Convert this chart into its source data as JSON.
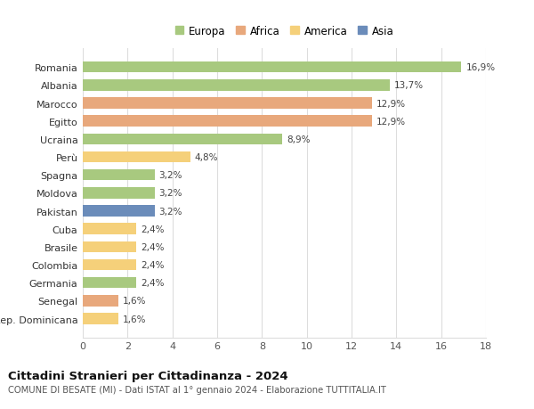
{
  "countries": [
    "Romania",
    "Albania",
    "Marocco",
    "Egitto",
    "Ucraina",
    "Perù",
    "Spagna",
    "Moldova",
    "Pakistan",
    "Cuba",
    "Brasile",
    "Colombia",
    "Germania",
    "Senegal",
    "Rep. Dominicana"
  ],
  "values": [
    16.9,
    13.7,
    12.9,
    12.9,
    8.9,
    4.8,
    3.2,
    3.2,
    3.2,
    2.4,
    2.4,
    2.4,
    2.4,
    1.6,
    1.6
  ],
  "labels": [
    "16,9%",
    "13,7%",
    "12,9%",
    "12,9%",
    "8,9%",
    "4,8%",
    "3,2%",
    "3,2%",
    "3,2%",
    "2,4%",
    "2,4%",
    "2,4%",
    "2,4%",
    "1,6%",
    "1,6%"
  ],
  "continents": [
    "Europa",
    "Europa",
    "Africa",
    "Africa",
    "Europa",
    "America",
    "Europa",
    "Europa",
    "Asia",
    "America",
    "America",
    "America",
    "Europa",
    "Africa",
    "America"
  ],
  "colors": {
    "Europa": "#a8c97f",
    "Africa": "#e8a87c",
    "America": "#f5d07a",
    "Asia": "#6b8cba"
  },
  "legend_order": [
    "Europa",
    "Africa",
    "America",
    "Asia"
  ],
  "legend_colors": [
    "#a8c97f",
    "#e8a87c",
    "#f5d07a",
    "#6b8cba"
  ],
  "title": "Cittadini Stranieri per Cittadinanza - 2024",
  "subtitle": "COMUNE DI BESATE (MI) - Dati ISTAT al 1° gennaio 2024 - Elaborazione TUTTITALIA.IT",
  "xlim": [
    0,
    18
  ],
  "xticks": [
    0,
    2,
    4,
    6,
    8,
    10,
    12,
    14,
    16,
    18
  ],
  "background_color": "#ffffff",
  "grid_color": "#dddddd"
}
